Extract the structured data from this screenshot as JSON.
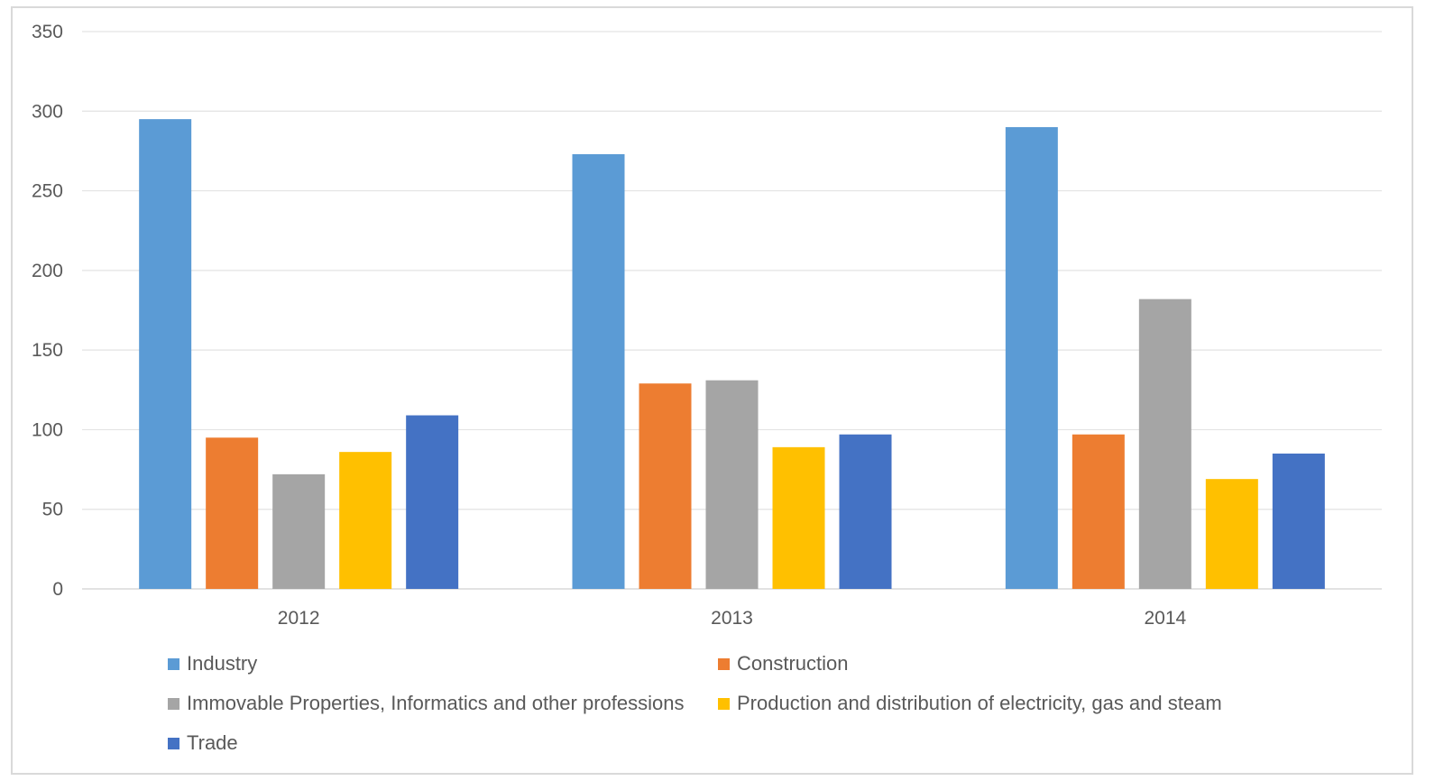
{
  "chart_data": {
    "type": "bar",
    "title": "",
    "xlabel": "",
    "ylabel": "",
    "categories": [
      "2012",
      "2013",
      "2014"
    ],
    "ylim": [
      0,
      350
    ],
    "yticks": [
      0,
      50,
      100,
      150,
      200,
      250,
      300,
      350
    ],
    "grid": true,
    "legend_position": "bottom",
    "series": [
      {
        "name": "Industry",
        "color": "#5B9BD5",
        "values": [
          295,
          273,
          290
        ]
      },
      {
        "name": "Construction",
        "color": "#ED7D31",
        "values": [
          95,
          129,
          97
        ]
      },
      {
        "name": "Immovable Properties, Informatics and other professions",
        "color": "#A5A5A5",
        "values": [
          72,
          131,
          182
        ]
      },
      {
        "name": "Production and distribution of electricity, gas and steam",
        "color": "#FFC000",
        "values": [
          86,
          89,
          69
        ]
      },
      {
        "name": "Trade",
        "color": "#4472C4",
        "values": [
          109,
          97,
          85
        ]
      }
    ]
  }
}
